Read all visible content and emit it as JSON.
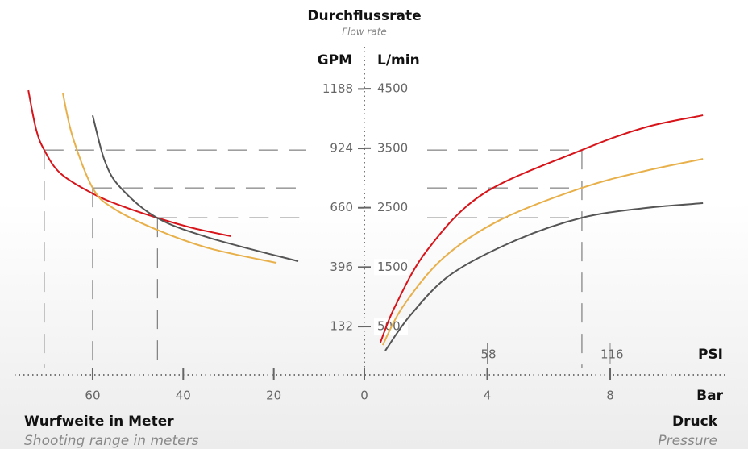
{
  "chart_data": {
    "type": "line",
    "title": "Durchflussrate",
    "subtitle": "Flow rate",
    "y_label": "L/min",
    "y2_label": "GPM",
    "ylim": [
      -313,
      4800
    ],
    "yticks": [
      500,
      1500,
      2500,
      3500,
      4500
    ],
    "y2lim": [
      -82.7,
      1268.2
    ],
    "y2ticks": [
      132,
      396,
      660,
      924,
      1188
    ],
    "guide_y": [
      3470,
      2832,
      2330
    ],
    "left": {
      "xlabel": "Wurfweite in Meter",
      "xsublabel": "Shooting range in meters",
      "xlim": [
        75,
        0
      ],
      "xticks": [
        60,
        40,
        20,
        0
      ],
      "guide_x": [
        70.7,
        60,
        45.7
      ],
      "series": [
        {
          "color": "#d7141a",
          "x": [
            74.2,
            72.5,
            70.7,
            67.1,
            60,
            53.8,
            45.8,
            37.7,
            29.4
          ],
          "values": [
            4473,
            3822,
            3470,
            3076,
            2737,
            2534,
            2330,
            2154,
            2019
          ]
        },
        {
          "color": "#e8b04a",
          "x": [
            66.6,
            64.4,
            60,
            55.5,
            45.8,
            34.2,
            19.4
          ],
          "values": [
            4432,
            3686,
            2832,
            2493,
            2127,
            1815,
            1571
          ]
        },
        {
          "color": "#555555",
          "x": [
            60,
            57.3,
            53.8,
            45.8,
            34.2,
            14.6
          ],
          "values": [
            4053,
            3280,
            2832,
            2330,
            1992,
            1598
          ]
        }
      ]
    },
    "right": {
      "xlabel": "Druck",
      "xsublabel": "Pressure",
      "x_unit": "Bar",
      "x2_unit": "PSI",
      "xlim": [
        0,
        11.75
      ],
      "xticks": [
        4,
        8
      ],
      "x2lim": [
        0,
        170.4
      ],
      "x2ticks": [
        58,
        116
      ],
      "guide_x": 7.08,
      "series": [
        {
          "color": "#d7141a",
          "x": [
            0.52,
            1.0,
            2.05,
            3.88,
            7.08,
            9.13,
            11.02
          ],
          "values": [
            228,
            839,
            1788,
            2737,
            3470,
            3849,
            4053
          ]
        },
        {
          "color": "#e8b04a",
          "x": [
            0.6,
            1.26,
            2.57,
            4.41,
            7.08,
            9.13,
            11.02
          ],
          "values": [
            188,
            839,
            1653,
            2290,
            2832,
            3117,
            3320
          ]
        },
        {
          "color": "#555555",
          "x": [
            0.68,
            1.52,
            2.83,
            4.93,
            7.08,
            9.13,
            11.02
          ],
          "values": [
            93,
            703,
            1381,
            1951,
            2330,
            2493,
            2575
          ]
        }
      ]
    }
  }
}
